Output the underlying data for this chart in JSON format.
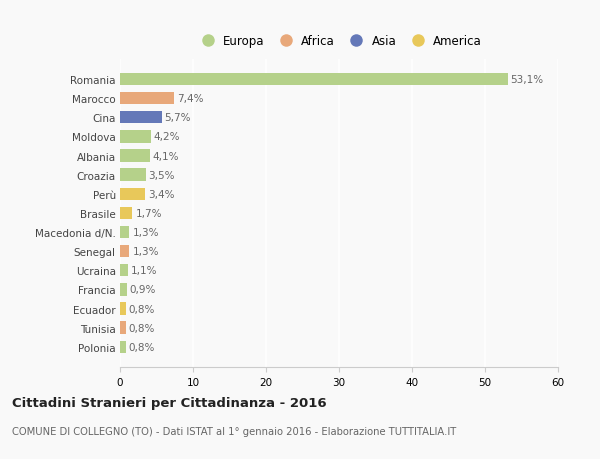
{
  "countries": [
    "Romania",
    "Marocco",
    "Cina",
    "Moldova",
    "Albania",
    "Croazia",
    "Perù",
    "Brasile",
    "Macedonia d/N.",
    "Senegal",
    "Ucraina",
    "Francia",
    "Ecuador",
    "Tunisia",
    "Polonia"
  ],
  "values": [
    53.1,
    7.4,
    5.7,
    4.2,
    4.1,
    3.5,
    3.4,
    1.7,
    1.3,
    1.3,
    1.1,
    0.9,
    0.8,
    0.8,
    0.8
  ],
  "labels": [
    "53,1%",
    "7,4%",
    "5,7%",
    "4,2%",
    "4,1%",
    "3,5%",
    "3,4%",
    "1,7%",
    "1,3%",
    "1,3%",
    "1,1%",
    "0,9%",
    "0,8%",
    "0,8%",
    "0,8%"
  ],
  "colors": [
    "#b5d18a",
    "#e8a87a",
    "#6478b8",
    "#b5d18a",
    "#b5d18a",
    "#b5d18a",
    "#e8c85a",
    "#e8c85a",
    "#b5d18a",
    "#e8a87a",
    "#b5d18a",
    "#b5d18a",
    "#e8c85a",
    "#e8a87a",
    "#b5d18a"
  ],
  "legend_labels": [
    "Europa",
    "Africa",
    "Asia",
    "America"
  ],
  "legend_colors": [
    "#b5d18a",
    "#e8a87a",
    "#6478b8",
    "#e8c85a"
  ],
  "title": "Cittadini Stranieri per Cittadinanza - 2016",
  "subtitle": "COMUNE DI COLLEGNO (TO) - Dati ISTAT al 1° gennaio 2016 - Elaborazione TUTTITALIA.IT",
  "xlim": [
    0,
    60
  ],
  "xticks": [
    0,
    10,
    20,
    30,
    40,
    50,
    60
  ],
  "background_color": "#f9f9f9",
  "grid_color": "#e8e8e8",
  "bar_height": 0.65,
  "label_color": "#666666",
  "spine_color": "#cccccc"
}
